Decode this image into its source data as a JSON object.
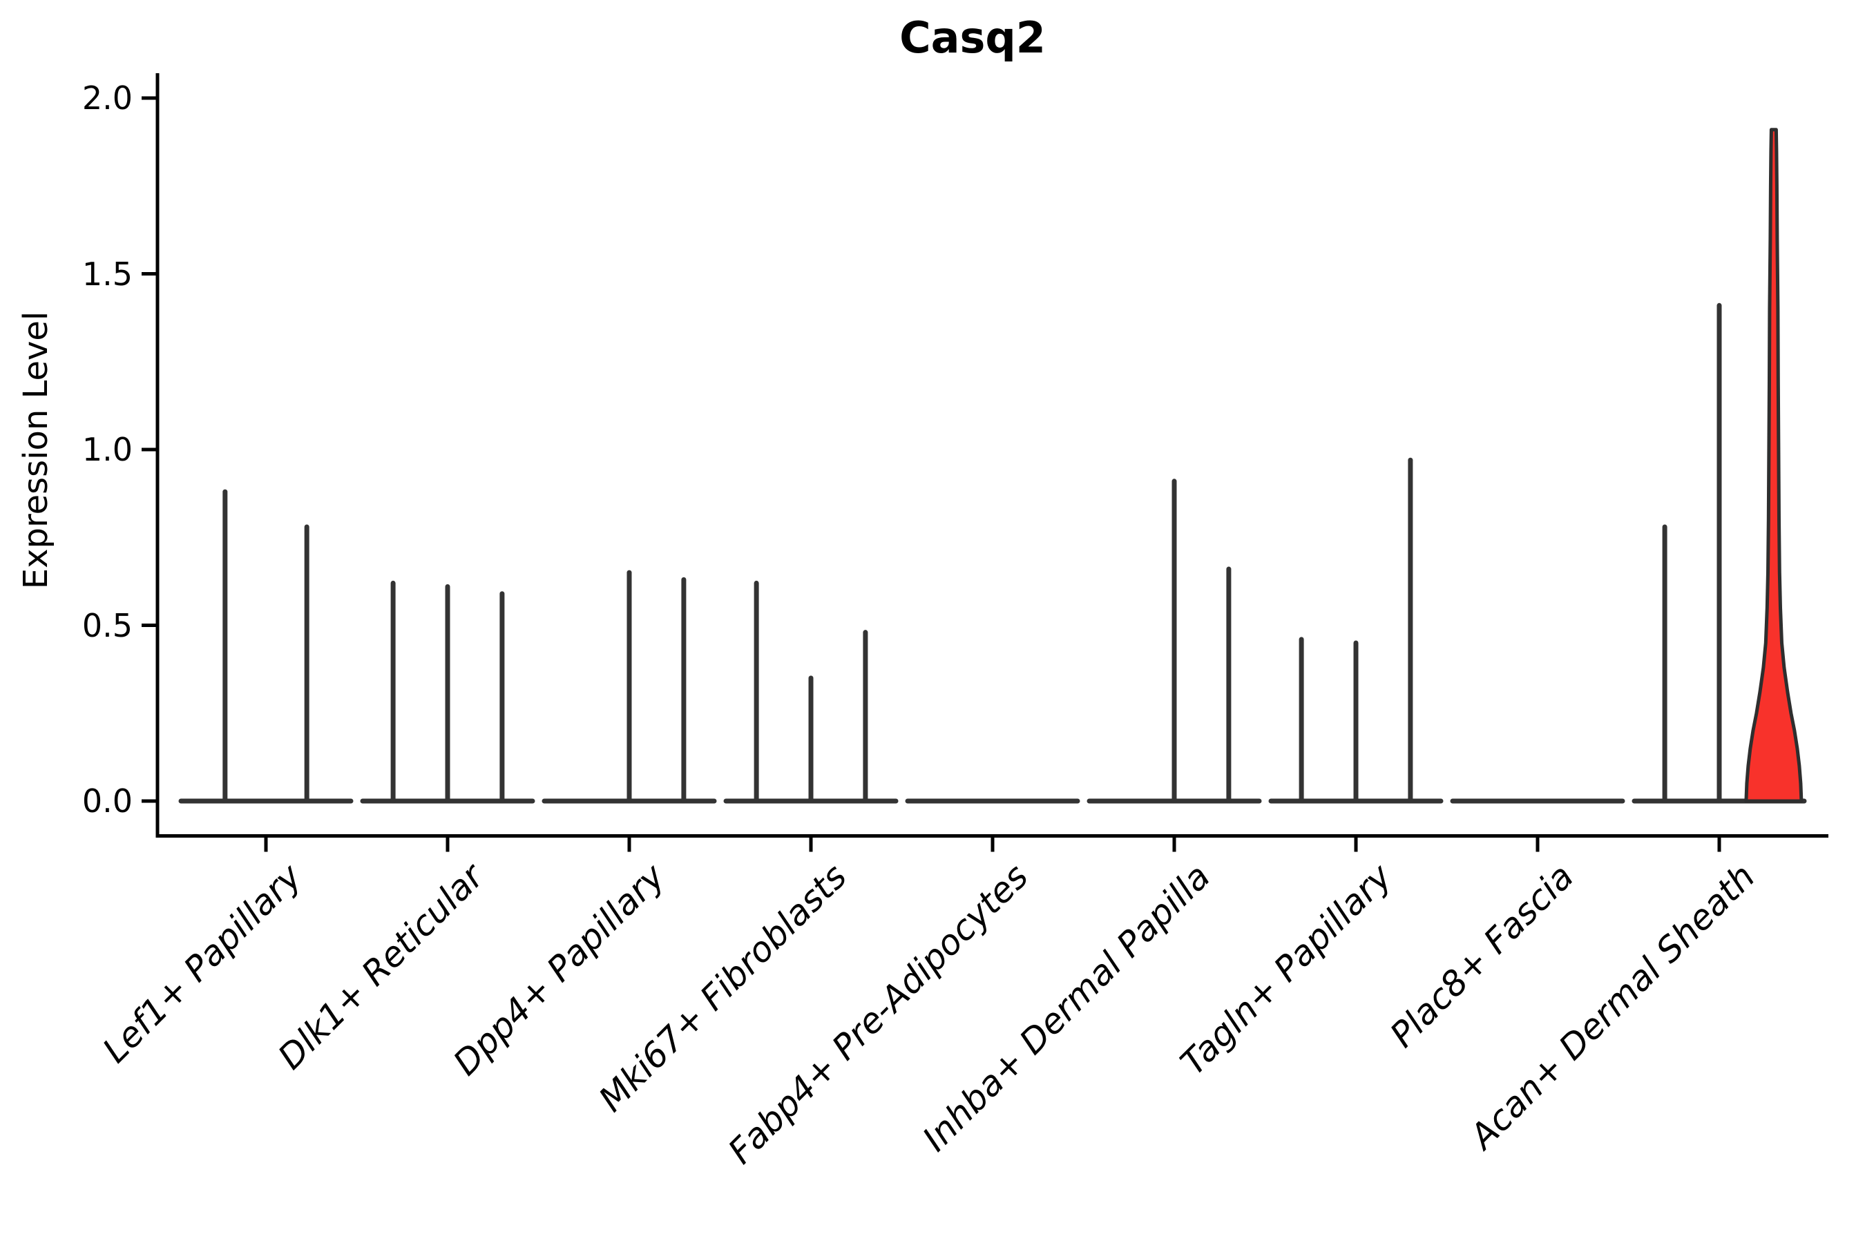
{
  "title": "Casq2",
  "ylabel": "Expression Level",
  "chart_data": {
    "type": "violin",
    "title": "Casq2",
    "xlabel": "",
    "ylabel": "Expression Level",
    "ylim": [
      0,
      2
    ],
    "grid": false,
    "legend": "none",
    "y_ticks": [
      0.0,
      0.5,
      1.0,
      1.5,
      2.0
    ],
    "y_tick_labels": [
      "0.0",
      "0.5",
      "1.0",
      "1.5",
      "2.0"
    ],
    "note": "Each category shows narrow spike-violins (near-zero density width); only the last category has a wide filled violin. offset is in category-width units, peak is max expression level.",
    "categories": [
      {
        "label": "Lef1+ Papillary",
        "violins": [
          {
            "offset": -0.225,
            "peak": 0.88
          },
          {
            "offset": 0.225,
            "peak": 0.78
          }
        ]
      },
      {
        "label": "Dlk1+ Reticular",
        "violins": [
          {
            "offset": -0.3,
            "peak": 0.62
          },
          {
            "offset": 0,
            "peak": 0.61
          },
          {
            "offset": 0.3,
            "peak": 0.59
          }
        ]
      },
      {
        "label": "Dpp4+ Papillary",
        "violins": [
          {
            "offset": 0,
            "peak": 0.65
          },
          {
            "offset": 0.3,
            "peak": 0.63
          }
        ]
      },
      {
        "label": "Mki67+ Fibroblasts",
        "violins": [
          {
            "offset": -0.3,
            "peak": 0.62
          },
          {
            "offset": 0,
            "peak": 0.35
          },
          {
            "offset": 0.3,
            "peak": 0.48
          }
        ]
      },
      {
        "label": "Fabp4+ Pre-Adipocytes",
        "violins": []
      },
      {
        "label": "Inhba+ Dermal Papilla",
        "violins": [
          {
            "offset": 0,
            "peak": 0.91
          },
          {
            "offset": 0.3,
            "peak": 0.66
          }
        ]
      },
      {
        "label": "Tagln+ Papillary",
        "violins": [
          {
            "offset": -0.3,
            "peak": 0.46
          },
          {
            "offset": 0,
            "peak": 0.45
          },
          {
            "offset": 0.3,
            "peak": 0.97
          }
        ]
      },
      {
        "label": "Plac8+ Fascia",
        "violins": []
      },
      {
        "label": "Acan+ Dermal Sheath",
        "violins": [
          {
            "offset": -0.3,
            "peak": 0.78
          },
          {
            "offset": 0,
            "peak": 1.41
          },
          {
            "offset": 0.3,
            "peak": 1.91,
            "filled": true,
            "profile": [
              [
                0,
                1
              ],
              [
                0.05,
                0.975
              ],
              [
                0.1,
                0.925
              ],
              [
                0.15,
                0.85
              ],
              [
                0.2,
                0.75
              ],
              [
                0.25,
                0.625
              ],
              [
                0.31,
                0.5
              ],
              [
                0.38,
                0.375
              ],
              [
                0.45,
                0.29
              ],
              [
                0.55,
                0.24
              ],
              [
                0.65,
                0.21
              ],
              [
                0.8,
                0.19
              ],
              [
                1.0,
                0.175
              ],
              [
                1.2,
                0.16
              ],
              [
                1.4,
                0.15
              ],
              [
                1.6,
                0.125
              ],
              [
                1.75,
                0.112
              ],
              [
                1.85,
                0.1
              ],
              [
                1.91,
                0.088
              ]
            ]
          }
        ]
      }
    ],
    "colors": {
      "spike": "#333333",
      "violin_outline": "#2e2e2e",
      "violin_fill": "#f8322b",
      "axis": "#000000",
      "text": "#000000",
      "background": "#ffffff"
    }
  }
}
